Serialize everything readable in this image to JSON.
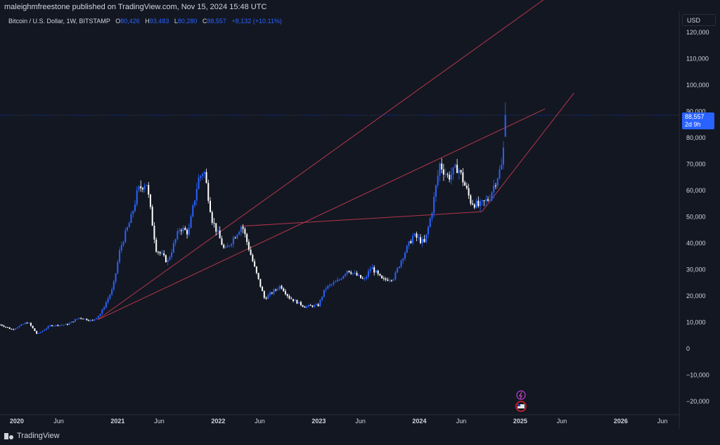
{
  "publisher_line": "maleighmfreestone published on TradingView.com, Nov 15, 2024 15:48 UTC",
  "symbol": {
    "title": "Bitcoin / U.S. Dollar, 1W, BITSTAMP",
    "open_label": "O",
    "open": "80,426",
    "high_label": "H",
    "high": "93,483",
    "low_label": "L",
    "low": "80,280",
    "close_label": "C",
    "close": "88,557",
    "change": "+8,132 (+10.11%)"
  },
  "currency": "USD",
  "last_price": {
    "price": "88,557",
    "countdown": "2d 9h"
  },
  "footer_brand": "TradingView",
  "colors": {
    "background": "#131722",
    "up_candle": "#2962ff",
    "down_candle": "#ffffff",
    "trendline": "#b2364a",
    "axis_text": "#d1d4dc",
    "accent": "#2962ff"
  },
  "icons": [
    "lightning-icon",
    "flag-icon"
  ],
  "chart_data": {
    "type": "line",
    "title": "Bitcoin / U.S. Dollar, 1W, BITSTAMP",
    "xlabel": "",
    "ylabel": "",
    "x_tick_labels": [
      "2020",
      "Jun",
      "2021",
      "Jun",
      "2022",
      "Jun",
      "2023",
      "Jun",
      "2024",
      "Jun",
      "2025",
      "Jun",
      "2026",
      "Jun"
    ],
    "y_tick_labels": [
      "120,000",
      "110,000",
      "100,000",
      "90,000",
      "80,000",
      "70,000",
      "60,000",
      "50,000",
      "40,000",
      "30,000",
      "20,000",
      "10,000",
      "0",
      "−10,000",
      "−20,000"
    ],
    "y_ticks": [
      120000,
      110000,
      100000,
      90000,
      80000,
      70000,
      60000,
      50000,
      40000,
      30000,
      20000,
      10000,
      0,
      -10000,
      -20000
    ],
    "ylim": [
      -25000,
      128000
    ],
    "xlim": [
      "2019-11-01",
      "2026-08-01"
    ],
    "grid": false,
    "series": [
      {
        "values": [
          [
            "2019-11-01",
            9200
          ],
          [
            "2019-12-15",
            7300
          ],
          [
            "2020-02-10",
            10200
          ],
          [
            "2020-03-15",
            5500
          ],
          [
            "2020-05-01",
            8800
          ],
          [
            "2020-07-01",
            9200
          ],
          [
            "2020-08-15",
            11800
          ],
          [
            "2020-10-01",
            10600
          ],
          [
            "2020-11-01",
            13500
          ],
          [
            "2020-12-15",
            23000
          ],
          [
            "2021-01-10",
            38000
          ],
          [
            "2021-02-20",
            50000
          ],
          [
            "2021-03-15",
            60000
          ],
          [
            "2021-04-15",
            63500
          ],
          [
            "2021-05-20",
            38000
          ],
          [
            "2021-07-01",
            33000
          ],
          [
            "2021-08-15",
            46000
          ],
          [
            "2021-09-15",
            44000
          ],
          [
            "2021-10-20",
            64000
          ],
          [
            "2021-11-10",
            68000
          ],
          [
            "2021-12-10",
            49000
          ],
          [
            "2022-01-25",
            37000
          ],
          [
            "2022-03-28",
            47000
          ],
          [
            "2022-05-15",
            30000
          ],
          [
            "2022-06-18",
            19000
          ],
          [
            "2022-08-15",
            24000
          ],
          [
            "2022-09-15",
            19500
          ],
          [
            "2022-11-10",
            16000
          ],
          [
            "2022-12-30",
            16500
          ],
          [
            "2023-01-25",
            23000
          ],
          [
            "2023-03-15",
            26000
          ],
          [
            "2023-04-15",
            30000
          ],
          [
            "2023-06-15",
            26000
          ],
          [
            "2023-07-10",
            31000
          ],
          [
            "2023-08-20",
            26000
          ],
          [
            "2023-10-01",
            27000
          ],
          [
            "2023-10-30",
            34500
          ],
          [
            "2023-12-10",
            43000
          ],
          [
            "2024-01-20",
            40000
          ],
          [
            "2024-02-15",
            52000
          ],
          [
            "2024-03-15",
            70000
          ],
          [
            "2024-04-15",
            65000
          ],
          [
            "2024-05-20",
            69000
          ],
          [
            "2024-07-05",
            56000
          ],
          [
            "2024-08-05",
            54000
          ],
          [
            "2024-09-10",
            57000
          ],
          [
            "2024-10-01",
            63000
          ],
          [
            "2024-10-28",
            70000
          ],
          [
            "2024-11-10",
            88557
          ]
        ]
      }
    ],
    "last_close": 88557
  }
}
